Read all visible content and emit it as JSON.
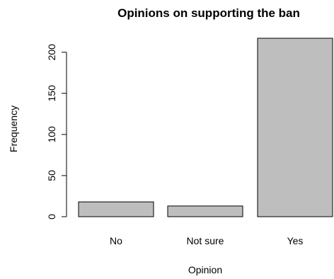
{
  "chart_data": {
    "type": "bar",
    "title": "Opinions on supporting the ban",
    "xlabel": "Opinion",
    "ylabel": "Frequency",
    "categories": [
      "No",
      "Not sure",
      "Yes"
    ],
    "values": [
      18,
      13,
      217
    ],
    "ylim": [
      0,
      217
    ],
    "yticks": [
      0,
      50,
      100,
      150,
      200
    ],
    "grid": false,
    "legend": false,
    "bar_color": "#bebebe",
    "bar_border_color": "#000000"
  }
}
